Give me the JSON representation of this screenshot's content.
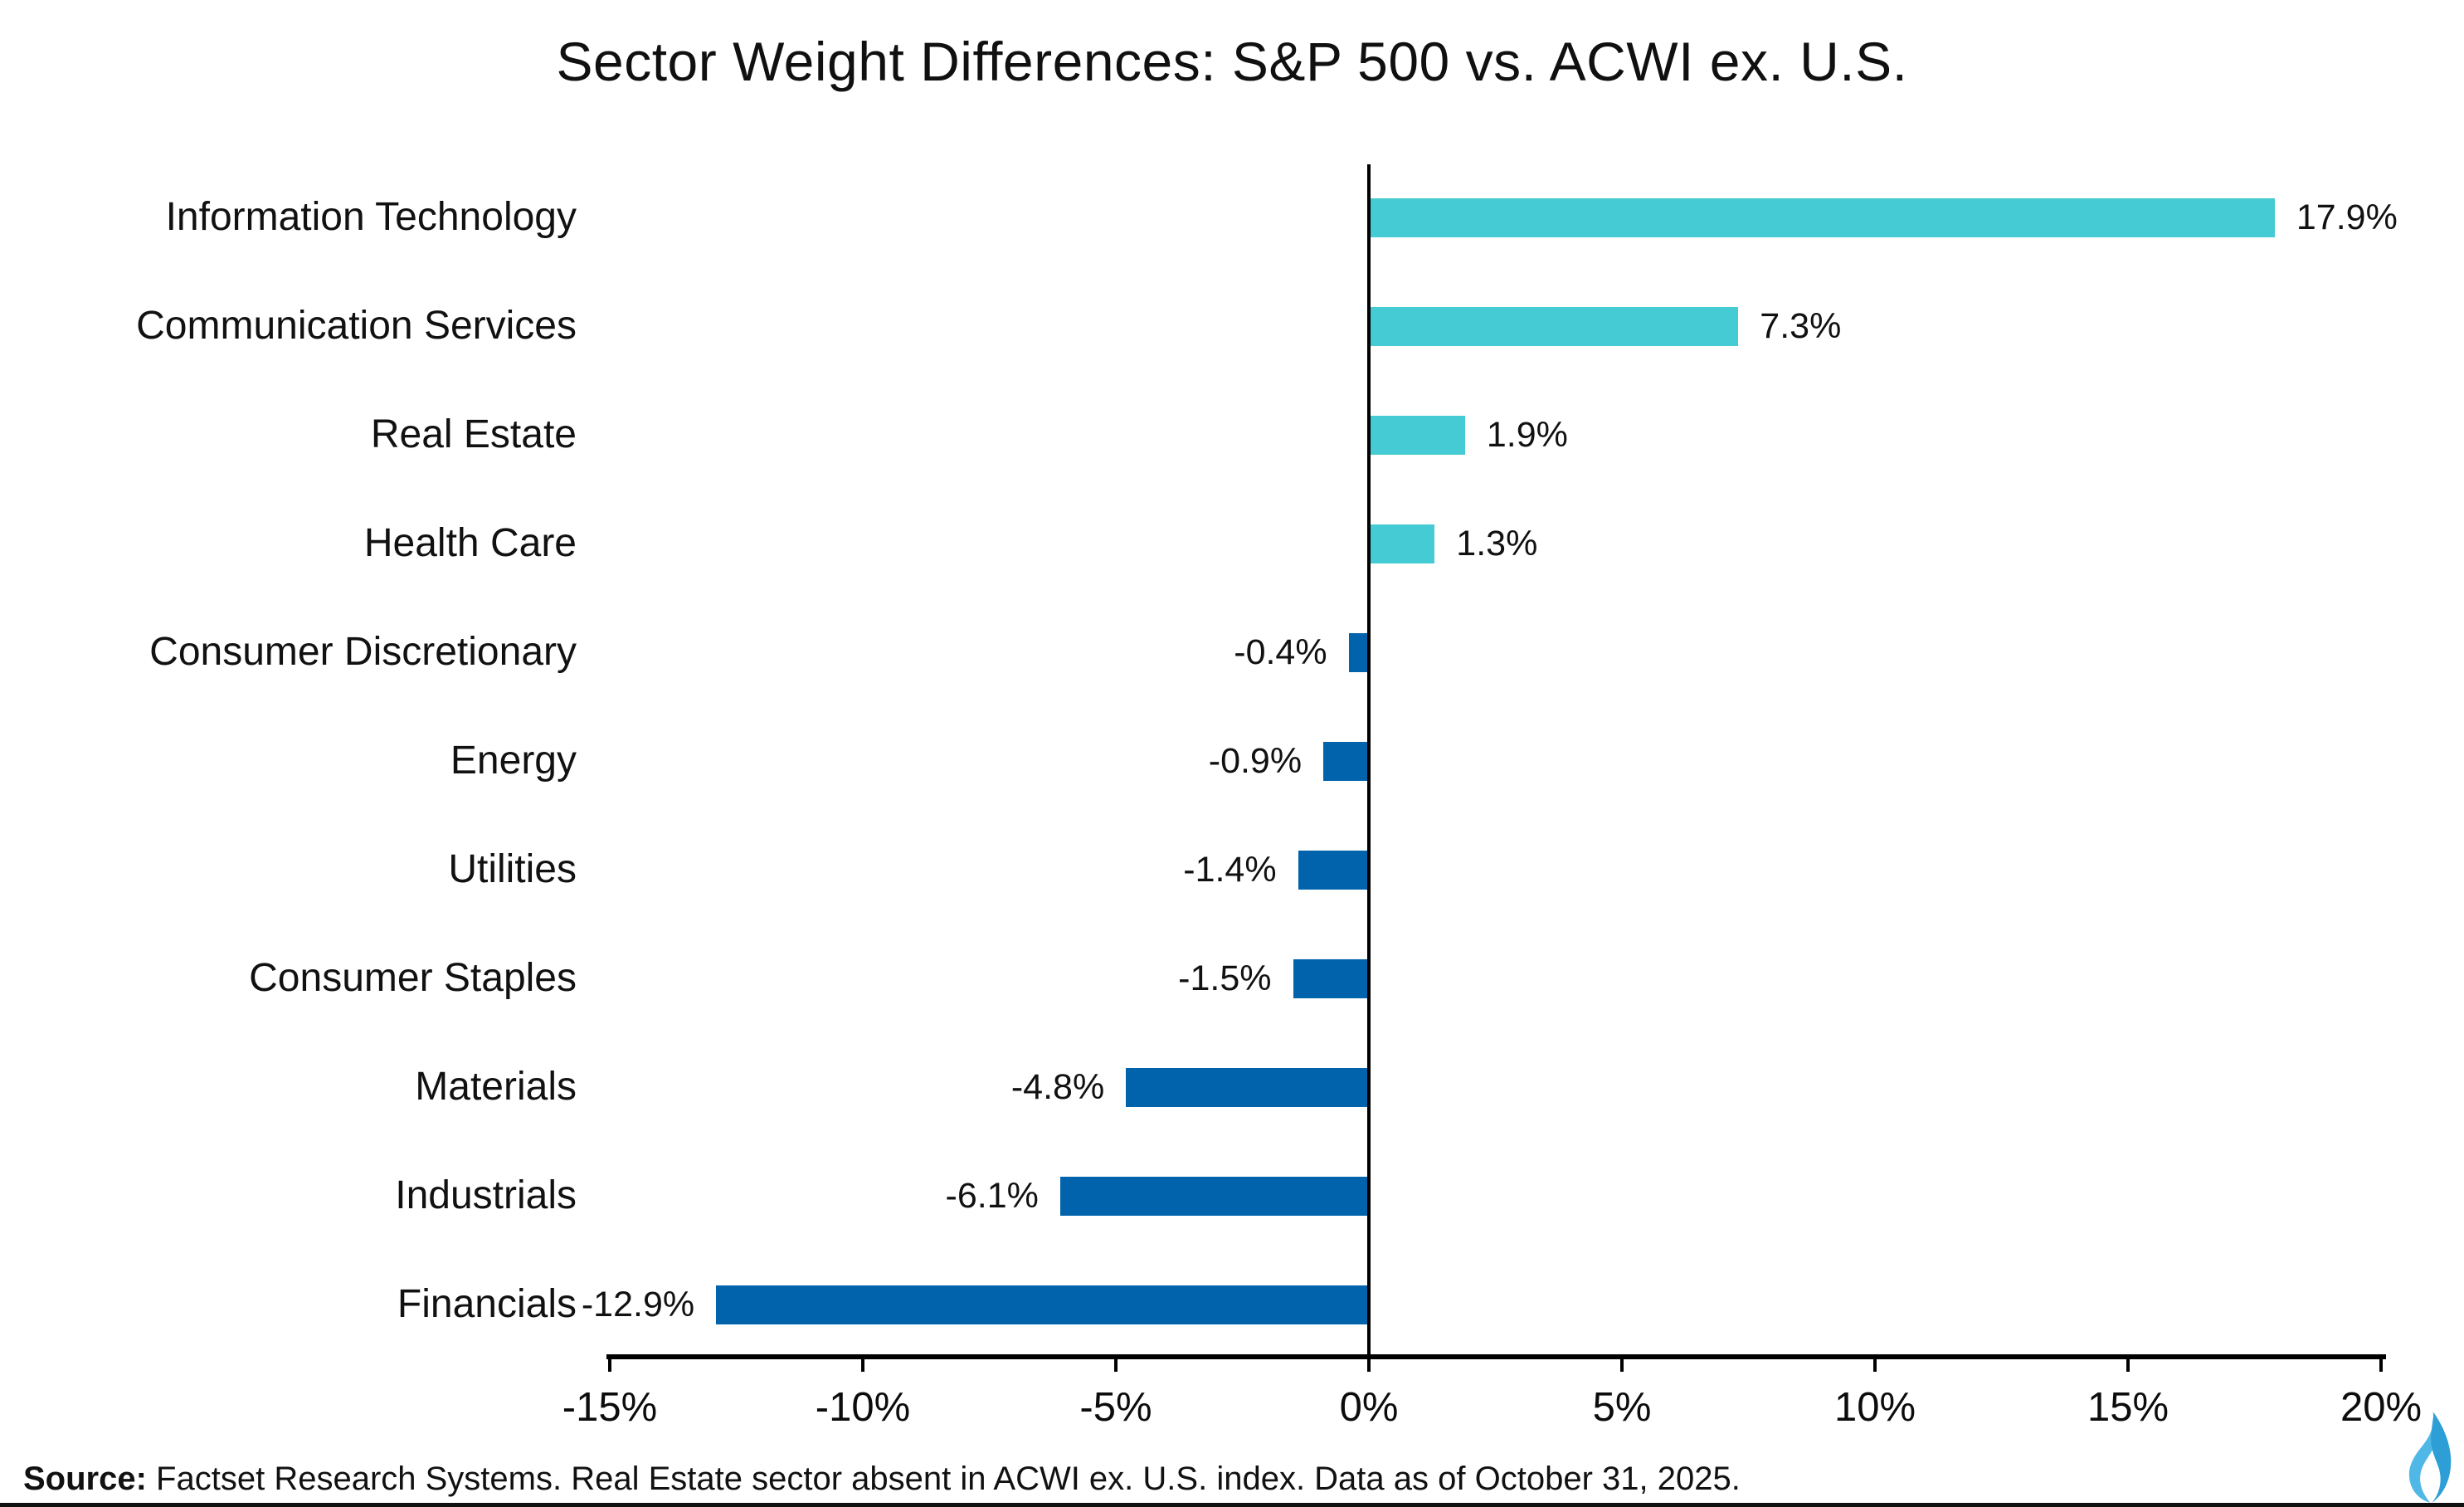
{
  "title": "Sector Weight Differences: S&P 500 vs. ACWI ex. U.S.",
  "source": {
    "label": "Source:",
    "text": " Factset Research Systems. Real Estate sector absent in ACWI ex. U.S. index. Data as of October 31, 2025."
  },
  "logo": {
    "name": "flame-logo",
    "color_light": "#4FB8E6",
    "color_dark": "#2D9FD6"
  },
  "chart_data": {
    "type": "bar",
    "orientation": "horizontal",
    "title": "Sector Weight Differences: S&P 500 vs. ACWI ex. U.S.",
    "categories": [
      "Information Technology",
      "Communication Services",
      "Real Estate",
      "Health Care",
      "Consumer Discretionary",
      "Energy",
      "Utilities",
      "Consumer Staples",
      "Materials",
      "Industrials",
      "Financials"
    ],
    "values": [
      17.9,
      7.3,
      1.9,
      1.3,
      -0.4,
      -0.9,
      -1.4,
      -1.5,
      -4.8,
      -6.1,
      -12.9
    ],
    "value_labels": [
      "17.9%",
      "7.3%",
      "1.9%",
      "1.3%",
      "-0.4%",
      "-0.9%",
      "-1.4%",
      "-1.5%",
      "-4.8%",
      "-6.1%",
      "-12.9%"
    ],
    "x_ticks": [
      -15,
      -10,
      -5,
      0,
      5,
      10,
      15,
      20
    ],
    "x_tick_labels": [
      "-15%",
      "-10%",
      "-5%",
      "0%",
      "5%",
      "10%",
      "15%",
      "20%"
    ],
    "xlim": [
      -15,
      20
    ],
    "xlabel": "",
    "ylabel": "",
    "grid": false,
    "legend": null,
    "positive_color": "#45CBD3",
    "negative_color": "#0063AC",
    "axis_color": "#000000"
  }
}
